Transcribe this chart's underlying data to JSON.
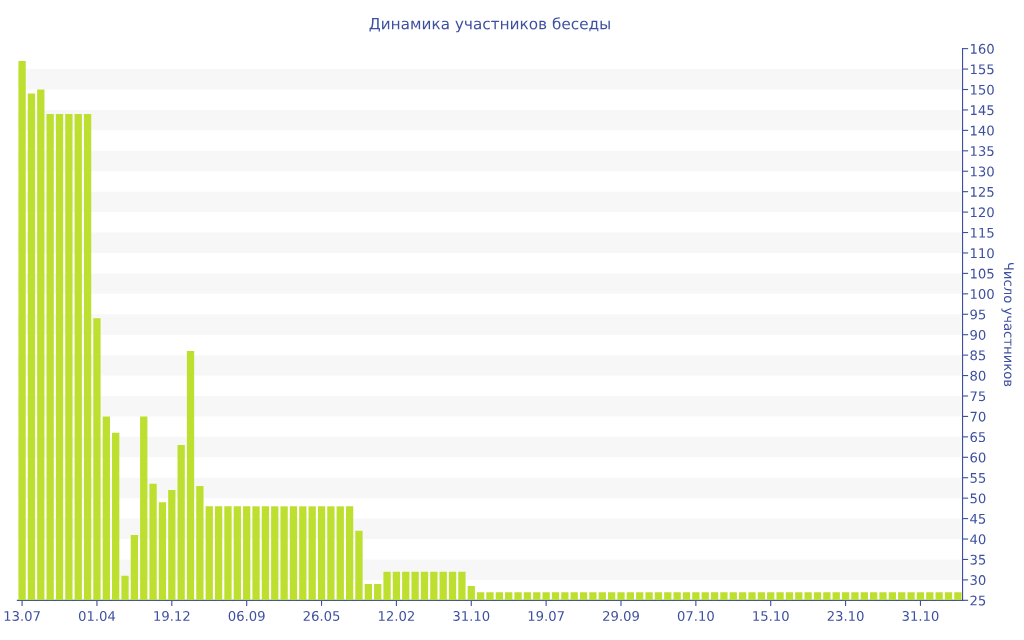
{
  "chart_data": {
    "type": "bar",
    "title": "Динамика участников беседы",
    "ylabel": "Число участников",
    "categories": [
      "13.07",
      null,
      null,
      null,
      null,
      null,
      null,
      null,
      "01.04",
      null,
      null,
      null,
      null,
      null,
      null,
      null,
      "19.12",
      null,
      null,
      null,
      null,
      null,
      null,
      null,
      "06.09",
      null,
      null,
      null,
      null,
      null,
      null,
      null,
      "26.05",
      null,
      null,
      null,
      null,
      null,
      null,
      null,
      "12.02",
      null,
      null,
      null,
      null,
      null,
      null,
      null,
      "31.10",
      null,
      null,
      null,
      null,
      null,
      null,
      null,
      "19.07",
      null,
      null,
      null,
      null,
      null,
      null,
      null,
      "29.09",
      null,
      null,
      null,
      null,
      null,
      null,
      null,
      "07.10",
      null,
      null,
      null,
      null,
      null,
      null,
      null,
      "15.10",
      null,
      null,
      null,
      null,
      null,
      null,
      null,
      "23.10",
      null,
      null,
      null,
      null,
      null,
      null,
      null,
      "31.10",
      null,
      null,
      null,
      null
    ],
    "values": [
      157,
      149,
      150,
      144,
      144,
      144,
      144,
      144,
      94,
      70,
      66,
      31,
      41,
      70,
      53.5,
      49,
      52,
      63,
      86,
      53,
      48,
      48,
      48,
      48,
      48,
      48,
      48,
      48,
      48,
      48,
      48,
      48,
      48,
      48,
      48,
      48,
      42,
      29,
      29,
      32,
      32,
      32,
      32,
      32,
      32,
      32,
      32,
      32,
      28.5,
      27,
      27,
      27,
      27,
      27,
      27,
      27,
      27,
      27,
      27,
      27,
      27,
      27,
      27,
      27,
      27,
      27,
      27,
      27,
      27,
      27,
      27,
      27,
      27,
      27,
      27,
      27,
      27,
      27,
      27,
      27,
      27,
      27,
      27,
      27,
      27,
      27,
      27,
      27,
      27,
      27,
      27,
      27,
      27,
      27,
      27,
      27,
      27,
      27,
      27,
      27,
      27
    ],
    "color": "#bddf2f",
    "ylim": [
      25,
      160
    ],
    "yticks": [
      25,
      30,
      35,
      40,
      45,
      50,
      55,
      60,
      65,
      70,
      75,
      80,
      85,
      90,
      95,
      100,
      105,
      110,
      115,
      120,
      125,
      130,
      135,
      140,
      145,
      150,
      155,
      160
    ],
    "legend": false,
    "bands": [
      {
        "axis": "y",
        "from": 30,
        "to": 35,
        "color": "#f7f7f7"
      },
      {
        "axis": "y",
        "from": 40,
        "to": 45,
        "color": "#f7f7f7"
      },
      {
        "axis": "y",
        "from": 50,
        "to": 55,
        "color": "#f7f7f7"
      },
      {
        "axis": "y",
        "from": 60,
        "to": 65,
        "color": "#f7f7f7"
      },
      {
        "axis": "y",
        "from": 70,
        "to": 75,
        "color": "#f7f7f7"
      },
      {
        "axis": "y",
        "from": 80,
        "to": 85,
        "color": "#f7f7f7"
      },
      {
        "axis": "y",
        "from": 90,
        "to": 95,
        "color": "#f7f7f7"
      },
      {
        "axis": "y",
        "from": 100,
        "to": 105,
        "color": "#f7f7f7"
      },
      {
        "axis": "y",
        "from": 110,
        "to": 115,
        "color": "#f7f7f7"
      },
      {
        "axis": "y",
        "from": 120,
        "to": 125,
        "color": "#f7f7f7"
      },
      {
        "axis": "y",
        "from": 130,
        "to": 135,
        "color": "#f7f7f7"
      },
      {
        "axis": "y",
        "from": 140,
        "to": 145,
        "color": "#f7f7f7"
      },
      {
        "axis": "y",
        "from": 150,
        "to": 155,
        "color": "#f7f7f7"
      }
    ]
  }
}
